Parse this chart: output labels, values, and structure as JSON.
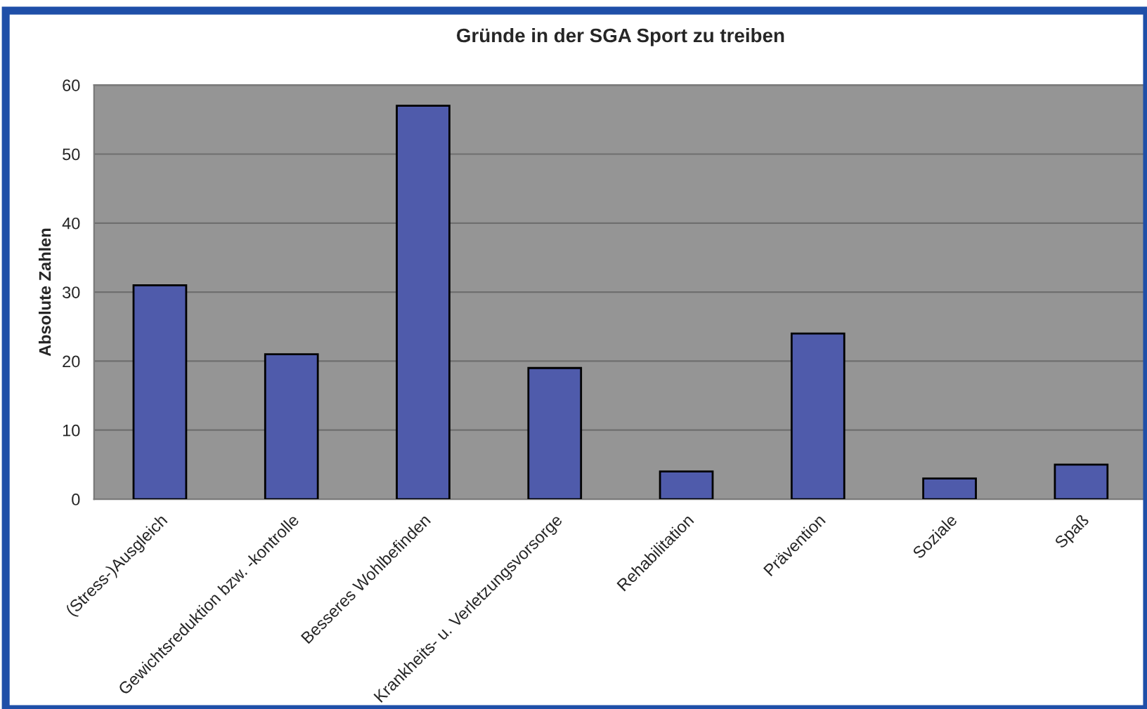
{
  "chart_data": {
    "type": "bar",
    "title": "Gründe in der SGA Sport zu treiben",
    "ylabel": "Absolute Zahlen",
    "categories": [
      "(Stress-)Ausgleich",
      "Gewichtsreduktion bzw. -kontrolle",
      "Besseres Wohlbefinden",
      "Krankheits- u. Verletzungsvorsorge",
      "Rehabilitation",
      "Prävention",
      "Soziale",
      "Spaß"
    ],
    "values": [
      31,
      21,
      57,
      19,
      4,
      24,
      3,
      5
    ],
    "color": "#4f5bab",
    "ylim": [
      0,
      60
    ],
    "yticks": [
      0,
      10,
      20,
      30,
      40,
      50,
      60
    ],
    "grid": "y"
  }
}
